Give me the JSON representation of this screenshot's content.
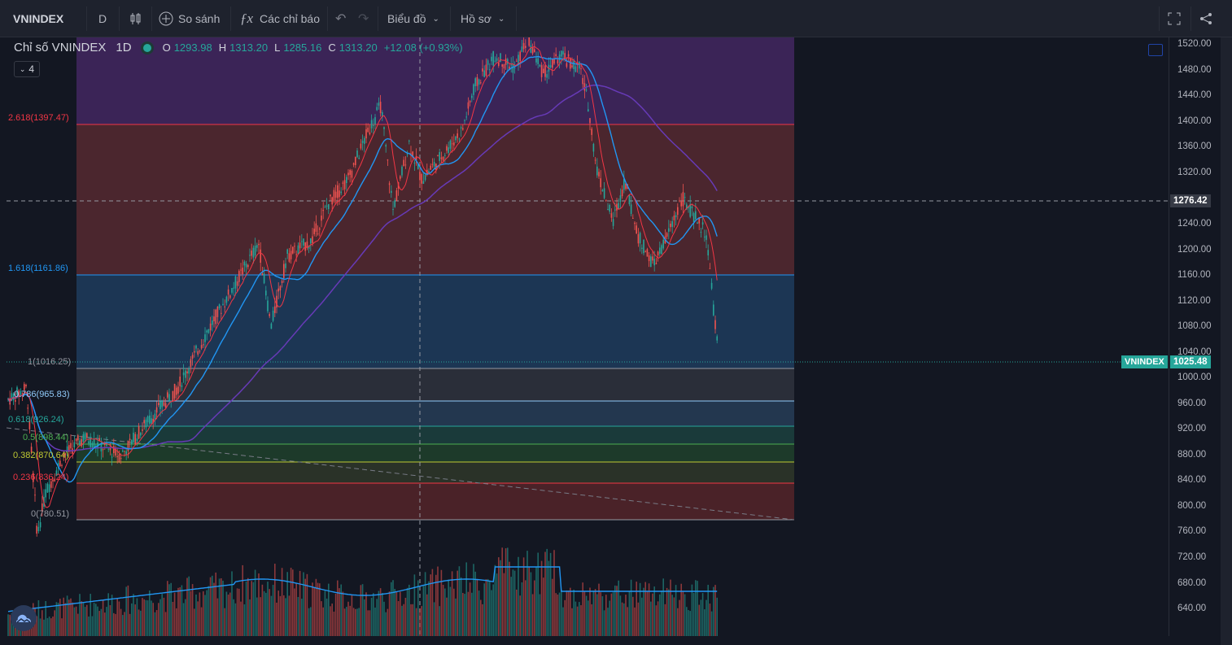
{
  "toolbar": {
    "symbol": "VNINDEX",
    "interval": "D",
    "compare_label": "So sánh",
    "indicators_label": "Các chỉ báo",
    "chart_type_label": "Biểu đồ",
    "profile_label": "Hồ sơ"
  },
  "legend": {
    "title": "Chỉ số VNINDEX",
    "interval": "1D",
    "o_label": "O",
    "o_value": "1293.98",
    "h_label": "H",
    "h_value": "1313.20",
    "l_label": "L",
    "l_value": "1285.16",
    "c_label": "C",
    "c_value": "1313.20",
    "change": "+12.08 (+0.93%)",
    "collapse_count": "4"
  },
  "fib_levels": [
    {
      "label": "2.618(1397.47)",
      "color": "#f23645"
    },
    {
      "label": "1.618(1161.86)",
      "color": "#2196f3"
    },
    {
      "label": "1(1016.25)",
      "color": "#9598a1"
    },
    {
      "label": "0.786(965.83)",
      "color": "#90caf9"
    },
    {
      "label": "0.618(926.24)",
      "color": "#26a69a"
    },
    {
      "label": "0.5(898.44)",
      "color": "#4caf50"
    },
    {
      "label": "0.382(870.64)",
      "color": "#c0ca33"
    },
    {
      "label": "0.236(836.24)",
      "color": "#f23645"
    },
    {
      "label": "0(780.51)",
      "color": "#9598a1"
    }
  ],
  "price_axis": [
    "1520.00",
    "1480.00",
    "1440.00",
    "1400.00",
    "1360.00",
    "1320.00",
    "1240.00",
    "1200.00",
    "1160.00",
    "1120.00",
    "1080.00",
    "1040.00",
    "1000.00",
    "960.00",
    "920.00",
    "880.00",
    "840.00",
    "800.00",
    "760.00",
    "720.00",
    "680.00",
    "640.00"
  ],
  "crosshair_price": "1276.42",
  "last_price_label": "VNINDEX",
  "last_price": "1025.48",
  "colors": {
    "up": "#26a69a",
    "down": "#ef5350",
    "background": "#131722",
    "accent": "#2962ff"
  }
}
